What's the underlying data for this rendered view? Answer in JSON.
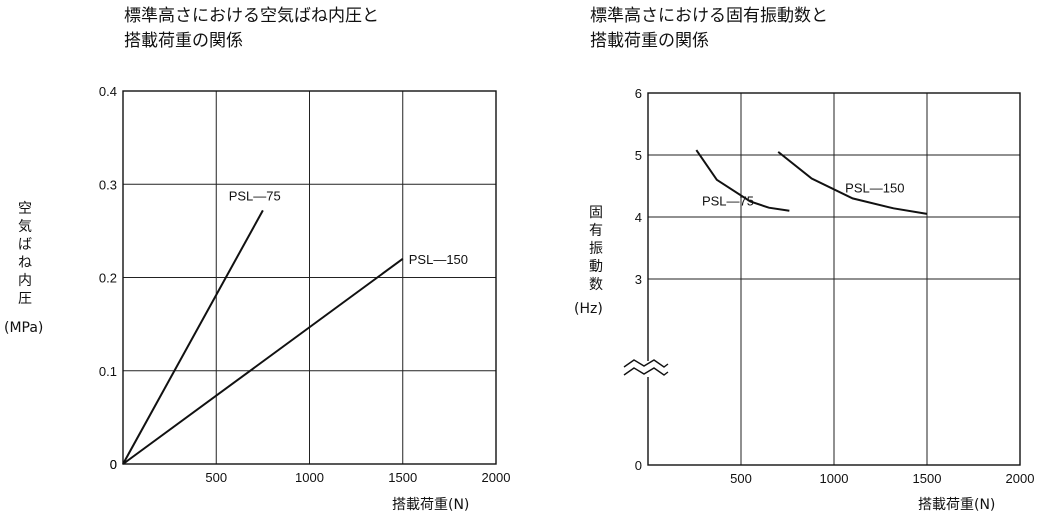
{
  "chart_data": [
    {
      "type": "line",
      "title": [
        "標準高さにおける空気ばね内圧と",
        "搭載荷重の関係"
      ],
      "ylabel_chars": [
        "空",
        "気",
        "ば",
        "ね",
        "内",
        "圧"
      ],
      "yunit": "(MPa)",
      "xlabel": "搭載荷重(N)",
      "xlim": [
        0,
        2000
      ],
      "ylim": [
        0,
        0.4
      ],
      "xticks": [
        500,
        1000,
        1500,
        2000
      ],
      "xtick_labels": [
        "500",
        "1000",
        "1500",
        "2000"
      ],
      "yticks": [
        0,
        0.1,
        0.2,
        0.3,
        0.4
      ],
      "ytick_labels": [
        "0",
        "0.1",
        "0.2",
        "0.3",
        "0.4"
      ],
      "origin_label": "0",
      "grid": true,
      "series": [
        {
          "name": "PSL—75",
          "x": [
            0,
            750
          ],
          "y": [
            0,
            0.272
          ]
        },
        {
          "name": "PSL—150",
          "x": [
            0,
            1500
          ],
          "y": [
            0,
            0.22
          ]
        }
      ]
    },
    {
      "type": "line",
      "title": [
        "標準高さにおける固有振動数と",
        "搭載荷重の関係"
      ],
      "ylabel_chars": [
        "固",
        "有",
        "振",
        "動",
        "数"
      ],
      "yunit": "(Hz)",
      "xlabel": "搭載荷重(N)",
      "xlim": [
        0,
        2000
      ],
      "ylim": [
        0,
        6
      ],
      "axis_break": "between 0 and 3",
      "xticks": [
        500,
        1000,
        1500,
        2000
      ],
      "xtick_labels": [
        "500",
        "1000",
        "1500",
        "2000"
      ],
      "yticks": [
        0,
        3,
        4,
        5,
        6
      ],
      "ytick_labels": [
        "0",
        "3",
        "4",
        "5",
        "6"
      ],
      "grid": true,
      "series": [
        {
          "name": "PSL—75",
          "x": [
            260,
            370,
            550,
            650,
            760
          ],
          "y": [
            5.08,
            4.6,
            4.25,
            4.15,
            4.1
          ]
        },
        {
          "name": "PSL—150",
          "x": [
            700,
            880,
            1100,
            1320,
            1500
          ],
          "y": [
            5.05,
            4.62,
            4.3,
            4.14,
            4.05
          ]
        }
      ]
    }
  ]
}
